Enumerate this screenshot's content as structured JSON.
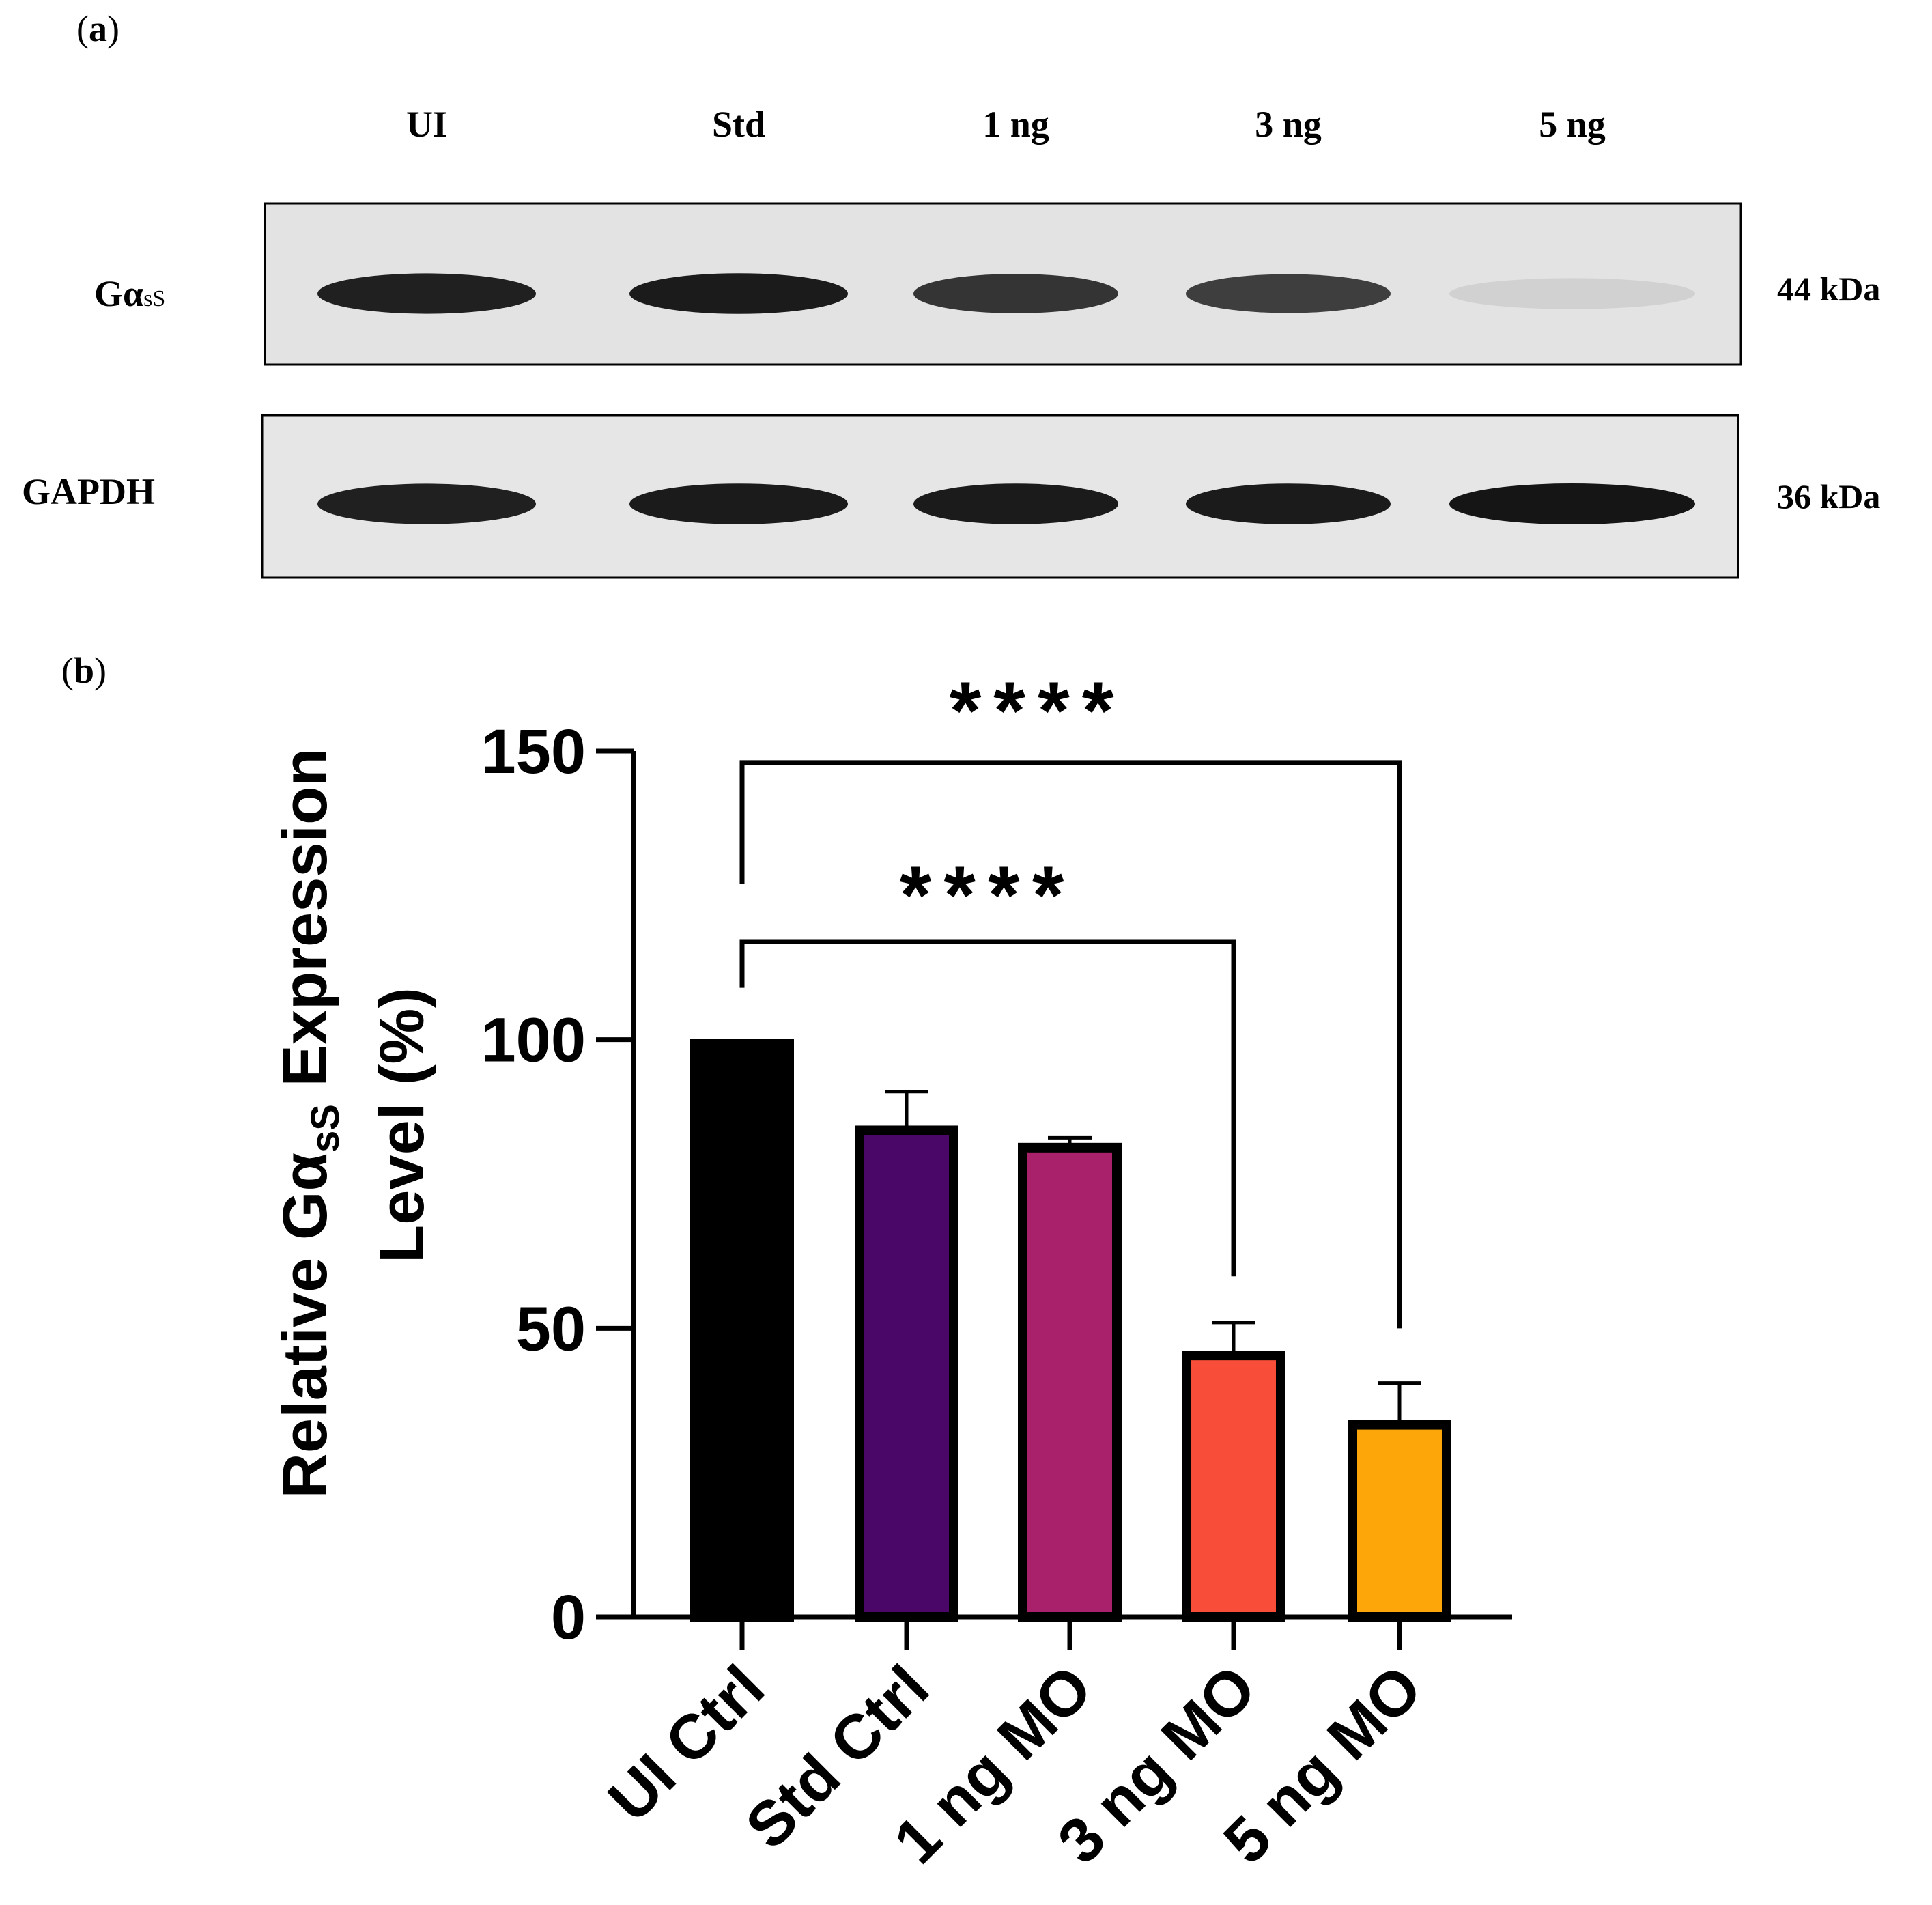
{
  "panel_a": {
    "label_open": "(",
    "label_letter": "a",
    "label_close": ")",
    "lanes": [
      "UI",
      "Std",
      "1 ng",
      "3 ng",
      "5 ng"
    ],
    "blots": [
      {
        "name_main": "Gα",
        "name_sub": "sS",
        "size": "44 kDa",
        "band_intensity": [
          0.95,
          0.97,
          0.85,
          0.8,
          0.08
        ],
        "background": "#e3e3e3"
      },
      {
        "name_main": "GAPDH",
        "name_sub": "",
        "size": "36 kDa",
        "band_intensity": [
          0.95,
          0.97,
          0.97,
          0.97,
          1.0
        ],
        "background": "#e6e6e6"
      }
    ]
  },
  "panel_b": {
    "label_open": "(",
    "label_letter": "b",
    "label_close": ")"
  },
  "chart_data": {
    "type": "bar",
    "categories": [
      "UI Ctrl",
      "Std Ctrl",
      "1 ng MO",
      "3 ng MO",
      "5 ng MO"
    ],
    "values": [
      100,
      85,
      82,
      46,
      34
    ],
    "errors": [
      0,
      6,
      1,
      5,
      6.5
    ],
    "colors": [
      "#000000",
      "#4b0768",
      "#a8216a",
      "#f84d38",
      "#fca60a"
    ],
    "ylabel_line1_pre": "Relative Gα",
    "ylabel_line1_sub": "sS",
    "ylabel_line1_post": " Expression",
    "ylabel_line2": "Level (%)",
    "ylim": [
      0,
      150
    ],
    "yticks": [
      "0",
      "50",
      "100",
      "150"
    ],
    "ytick_values": [
      0,
      50,
      100,
      150
    ],
    "significance": [
      {
        "from": "UI Ctrl",
        "to": "5 ng MO",
        "label": "****"
      },
      {
        "from": "UI Ctrl",
        "to": "3 ng MO",
        "label": "****"
      }
    ]
  }
}
